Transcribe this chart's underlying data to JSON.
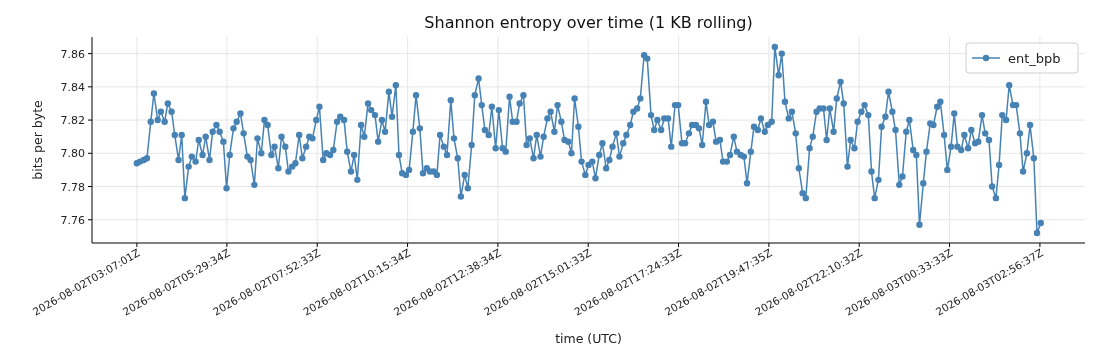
{
  "chart_data": {
    "type": "line",
    "title": "Shannon entropy over time (1 KB rolling)",
    "xlabel": "time (UTC)",
    "ylabel": "bits per byte",
    "xlim": [
      "2026-08-02T01:56",
      "2026-08-03T04:08"
    ],
    "ylim": [
      7.746,
      7.87
    ],
    "xticks": [
      {
        "value": "2026-08-02T03:07:01",
        "label": "2026-08-02T03:07:01Z"
      },
      {
        "value": "2026-08-02T05:29:34",
        "label": "2026-08-02T05:29:34Z"
      },
      {
        "value": "2026-08-02T07:52:33",
        "label": "2026-08-02T07:52:33Z"
      },
      {
        "value": "2026-08-02T10:15:34",
        "label": "2026-08-02T10:15:34Z"
      },
      {
        "value": "2026-08-02T12:38:34",
        "label": "2026-08-02T12:38:34Z"
      },
      {
        "value": "2026-08-02T15:01:33",
        "label": "2026-08-02T15:01:33Z"
      },
      {
        "value": "2026-08-02T17:24:33",
        "label": "2026-08-02T17:24:33Z"
      },
      {
        "value": "2026-08-02T19:47:35",
        "label": "2026-08-02T19:47:35Z"
      },
      {
        "value": "2026-08-02T22:10:32",
        "label": "2026-08-02T22:10:32Z"
      },
      {
        "value": "2026-08-03T00:33:33",
        "label": "2026-08-03T00:33:33Z"
      },
      {
        "value": "2026-08-03T02:56:37",
        "label": "2026-08-03T02:56:37Z"
      }
    ],
    "yticks": [
      7.76,
      7.78,
      {
        "value": 7.8,
        "label": "7.80"
      },
      7.82,
      7.84,
      7.86
    ],
    "grid": true,
    "legend": "top right",
    "marker": "circle",
    "line_style": "solid",
    "x": [
      "2026-08-02T03:07",
      "2026-08-02T03:12",
      "2026-08-02T03:18",
      "2026-08-02T03:23",
      "2026-08-02T03:29",
      "2026-08-02T03:34",
      "2026-08-02T03:40",
      "2026-08-02T03:45",
      "2026-08-02T03:51",
      "2026-08-02T03:56",
      "2026-08-02T04:02",
      "2026-08-02T04:07",
      "2026-08-02T04:13",
      "2026-08-02T04:18",
      "2026-08-02T04:23",
      "2026-08-02T04:29",
      "2026-08-02T04:34",
      "2026-08-02T04:40",
      "2026-08-02T04:45",
      "2026-08-02T04:51",
      "2026-08-02T04:56",
      "2026-08-02T05:02",
      "2026-08-02T05:07",
      "2026-08-02T05:13",
      "2026-08-02T05:18",
      "2026-08-02T05:24",
      "2026-08-02T05:29",
      "2026-08-02T05:34",
      "2026-08-02T05:40",
      "2026-08-02T05:45",
      "2026-08-02T05:51",
      "2026-08-02T05:56",
      "2026-08-02T06:02",
      "2026-08-02T06:07",
      "2026-08-02T06:13",
      "2026-08-02T06:18",
      "2026-08-02T06:24",
      "2026-08-02T06:29",
      "2026-08-02T06:34",
      "2026-08-02T06:40",
      "2026-08-02T06:45",
      "2026-08-02T06:51",
      "2026-08-02T06:56",
      "2026-08-02T07:02",
      "2026-08-02T07:07",
      "2026-08-02T07:13",
      "2026-08-02T07:18",
      "2026-08-02T07:24",
      "2026-08-02T07:29",
      "2026-08-02T07:35",
      "2026-08-02T07:40",
      "2026-08-02T07:45",
      "2026-08-02T07:51",
      "2026-08-02T07:56",
      "2026-08-02T08:02",
      "2026-08-02T08:07",
      "2026-08-02T08:13",
      "2026-08-02T08:18",
      "2026-08-02T08:24",
      "2026-08-02T08:29",
      "2026-08-02T08:35",
      "2026-08-02T08:40",
      "2026-08-02T08:46",
      "2026-08-02T08:51",
      "2026-08-02T08:56",
      "2026-08-02T09:02",
      "2026-08-02T09:07",
      "2026-08-02T09:13",
      "2026-08-02T09:18",
      "2026-08-02T09:24",
      "2026-08-02T09:29",
      "2026-08-02T09:35",
      "2026-08-02T09:40",
      "2026-08-02T09:46",
      "2026-08-02T09:51",
      "2026-08-02T09:57",
      "2026-08-02T10:02",
      "2026-08-02T10:07",
      "2026-08-02T10:13",
      "2026-08-02T10:18",
      "2026-08-02T10:24",
      "2026-08-02T10:29",
      "2026-08-02T10:35",
      "2026-08-02T10:40",
      "2026-08-02T10:46",
      "2026-08-02T10:51",
      "2026-08-02T10:57",
      "2026-08-02T11:02",
      "2026-08-02T11:07",
      "2026-08-02T11:13",
      "2026-08-02T11:18",
      "2026-08-02T11:24",
      "2026-08-02T11:29",
      "2026-08-02T11:35",
      "2026-08-02T11:40",
      "2026-08-02T11:46",
      "2026-08-02T11:51",
      "2026-08-02T11:57",
      "2026-08-02T12:02",
      "2026-08-02T12:08",
      "2026-08-02T12:13",
      "2026-08-02T12:18",
      "2026-08-02T12:24",
      "2026-08-02T12:29",
      "2026-08-02T12:35",
      "2026-08-02T12:40",
      "2026-08-02T12:46",
      "2026-08-02T12:51",
      "2026-08-02T12:57",
      "2026-08-02T13:02",
      "2026-08-02T13:08",
      "2026-08-02T13:13",
      "2026-08-02T13:19",
      "2026-08-02T13:24",
      "2026-08-02T13:29",
      "2026-08-02T13:35",
      "2026-08-02T13:40",
      "2026-08-02T13:46",
      "2026-08-02T13:51",
      "2026-08-02T13:57",
      "2026-08-02T14:02",
      "2026-08-02T14:08",
      "2026-08-02T14:13",
      "2026-08-02T14:19",
      "2026-08-02T14:24",
      "2026-08-02T14:30",
      "2026-08-02T14:35",
      "2026-08-02T14:40",
      "2026-08-02T14:46",
      "2026-08-02T14:51",
      "2026-08-02T14:57",
      "2026-08-02T15:02",
      "2026-08-02T15:08",
      "2026-08-02T15:13",
      "2026-08-02T15:19",
      "2026-08-02T15:24",
      "2026-08-02T15:30",
      "2026-08-02T15:35",
      "2026-08-02T15:40",
      "2026-08-02T15:46",
      "2026-08-02T15:51",
      "2026-08-02T15:57",
      "2026-08-02T16:02",
      "2026-08-02T16:08",
      "2026-08-02T16:13",
      "2026-08-02T16:19",
      "2026-08-02T16:24",
      "2026-08-02T16:30",
      "2026-08-02T16:35",
      "2026-08-02T16:41",
      "2026-08-02T16:46",
      "2026-08-02T16:51",
      "2026-08-02T16:57",
      "2026-08-02T17:02",
      "2026-08-02T17:08",
      "2026-08-02T17:13",
      "2026-08-02T17:19",
      "2026-08-02T17:24",
      "2026-08-02T17:30",
      "2026-08-02T17:35",
      "2026-08-02T17:41",
      "2026-08-02T17:46",
      "2026-08-02T17:52",
      "2026-08-02T17:57",
      "2026-08-02T18:02",
      "2026-08-02T18:08",
      "2026-08-02T18:13",
      "2026-08-02T18:19",
      "2026-08-02T18:24",
      "2026-08-02T18:30",
      "2026-08-02T18:35",
      "2026-08-02T18:41",
      "2026-08-02T18:46",
      "2026-08-02T18:52",
      "2026-08-02T18:57",
      "2026-08-02T19:03",
      "2026-08-02T19:08",
      "2026-08-02T19:13",
      "2026-08-02T19:19",
      "2026-08-02T19:24",
      "2026-08-02T19:30",
      "2026-08-02T19:35",
      "2026-08-02T19:41",
      "2026-08-02T19:46",
      "2026-08-02T19:52",
      "2026-08-02T19:57",
      "2026-08-02T20:03",
      "2026-08-02T20:08",
      "2026-08-02T20:13",
      "2026-08-02T20:19",
      "2026-08-02T20:24",
      "2026-08-02T20:30",
      "2026-08-02T20:35",
      "2026-08-02T20:41",
      "2026-08-02T20:46",
      "2026-08-02T20:52",
      "2026-08-02T20:57",
      "2026-08-02T21:03",
      "2026-08-02T21:08",
      "2026-08-02T21:14",
      "2026-08-02T21:19",
      "2026-08-02T21:24",
      "2026-08-02T21:30",
      "2026-08-02T21:35",
      "2026-08-02T21:41",
      "2026-08-02T21:46",
      "2026-08-02T21:52",
      "2026-08-02T21:57",
      "2026-08-02T22:03",
      "2026-08-02T22:08",
      "2026-08-02T22:14",
      "2026-08-02T22:19",
      "2026-08-02T22:25",
      "2026-08-02T22:30",
      "2026-08-02T22:35",
      "2026-08-02T22:41",
      "2026-08-02T22:46",
      "2026-08-02T22:52",
      "2026-08-02T22:57",
      "2026-08-02T23:03",
      "2026-08-02T23:08",
      "2026-08-02T23:14",
      "2026-08-02T23:19",
      "2026-08-02T23:25",
      "2026-08-02T23:30",
      "2026-08-02T23:36",
      "2026-08-02T23:41",
      "2026-08-02T23:46",
      "2026-08-02T23:52",
      "2026-08-02T23:57",
      "2026-08-03T00:03",
      "2026-08-03T00:08",
      "2026-08-03T00:14",
      "2026-08-03T00:19",
      "2026-08-03T00:25",
      "2026-08-03T00:30",
      "2026-08-03T00:36",
      "2026-08-03T00:41",
      "2026-08-03T00:46",
      "2026-08-03T00:52",
      "2026-08-03T00:57",
      "2026-08-03T01:03",
      "2026-08-03T01:08",
      "2026-08-03T01:14",
      "2026-08-03T01:19",
      "2026-08-03T01:25",
      "2026-08-03T01:30",
      "2026-08-03T01:36",
      "2026-08-03T01:41",
      "2026-08-03T01:47",
      "2026-08-03T01:52",
      "2026-08-03T01:57",
      "2026-08-03T02:03",
      "2026-08-03T02:08",
      "2026-08-03T02:14",
      "2026-08-03T02:19",
      "2026-08-03T02:25",
      "2026-08-03T02:30",
      "2026-08-03T02:36",
      "2026-08-03T02:41",
      "2026-08-03T02:47",
      "2026-08-03T02:52",
      "2026-08-03T02:58"
    ],
    "series": [
      {
        "name": "ent_bpb",
        "color": "#4682b4",
        "values": [
          7.794,
          7.795,
          7.796,
          7.797,
          7.819,
          7.836,
          7.82,
          7.825,
          7.819,
          7.83,
          7.825,
          7.811,
          7.796,
          7.811,
          7.773,
          7.792,
          7.798,
          7.795,
          7.808,
          7.799,
          7.81,
          7.796,
          7.813,
          7.817,
          7.813,
          7.807,
          7.779,
          7.799,
          7.815,
          7.819,
          7.824,
          7.812,
          7.798,
          7.796,
          7.781,
          7.809,
          7.8,
          7.82,
          7.817,
          7.799,
          7.804,
          7.791,
          7.81,
          7.804,
          7.789,
          7.792,
          7.794,
          7.811,
          7.797,
          7.804,
          7.81,
          7.809,
          7.82,
          7.828,
          7.796,
          7.8,
          7.799,
          7.802,
          7.819,
          7.822,
          7.82,
          7.801,
          7.789,
          7.799,
          7.784,
          7.817,
          7.81,
          7.83,
          7.826,
          7.823,
          7.807,
          7.82,
          7.813,
          7.837,
          7.822,
          7.841,
          7.799,
          7.788,
          7.787,
          7.79,
          7.813,
          7.835,
          7.815,
          7.788,
          7.791,
          7.789,
          7.789,
          7.787,
          7.811,
          7.804,
          7.799,
          7.832,
          7.809,
          7.797,
          7.774,
          7.787,
          7.779,
          7.805,
          7.835,
          7.845,
          7.829,
          7.814,
          7.811,
          7.828,
          7.803,
          7.826,
          7.803,
          7.801,
          7.834,
          7.819,
          7.819,
          7.83,
          7.835,
          7.805,
          7.809,
          7.797,
          7.811,
          7.798,
          7.81,
          7.821,
          7.825,
          7.813,
          7.829,
          7.819,
          7.808,
          7.807,
          7.8,
          7.833,
          7.816,
          7.795,
          7.787,
          7.793,
          7.795,
          7.785,
          7.799,
          7.806,
          7.791,
          7.796,
          7.804,
          7.812,
          7.798,
          7.806,
          7.811,
          7.817,
          7.825,
          7.827,
          7.833,
          7.859,
          7.857,
          7.823,
          7.814,
          7.82,
          7.814,
          7.821,
          7.821,
          7.804,
          7.829,
          7.829,
          7.806,
          7.806,
          7.812,
          7.817,
          7.817,
          7.815,
          7.805,
          7.831,
          7.817,
          7.819,
          7.807,
          7.808,
          7.795,
          7.795,
          7.799,
          7.81,
          7.801,
          7.799,
          7.798,
          7.782,
          7.801,
          7.816,
          7.814,
          7.821,
          7.813,
          7.817,
          7.819,
          7.864,
          7.847,
          7.86,
          7.831,
          7.821,
          7.825,
          7.812,
          7.791,
          7.776,
          7.773,
          7.803,
          7.81,
          7.825,
          7.827,
          7.827,
          7.808,
          7.827,
          7.813,
          7.833,
          7.843,
          7.83,
          7.792,
          7.808,
          7.803,
          7.819,
          7.825,
          7.829,
          7.823,
          7.789,
          7.773,
          7.784,
          7.816,
          7.822,
          7.837,
          7.825,
          7.814,
          7.781,
          7.786,
          7.813,
          7.82,
          7.802,
          7.799,
          7.757,
          7.782,
          7.801,
          7.818,
          7.817,
          7.828,
          7.831,
          7.811,
          7.79,
          7.804,
          7.824,
          7.804,
          7.802,
          7.811,
          7.803,
          7.814,
          7.806,
          7.807,
          7.823,
          7.812,
          7.808,
          7.78,
          7.773,
          7.793,
          7.823,
          7.82,
          7.841,
          7.829,
          7.829,
          7.812,
          7.789,
          7.8,
          7.817,
          7.797,
          7.752,
          7.758
        ]
      }
    ]
  }
}
